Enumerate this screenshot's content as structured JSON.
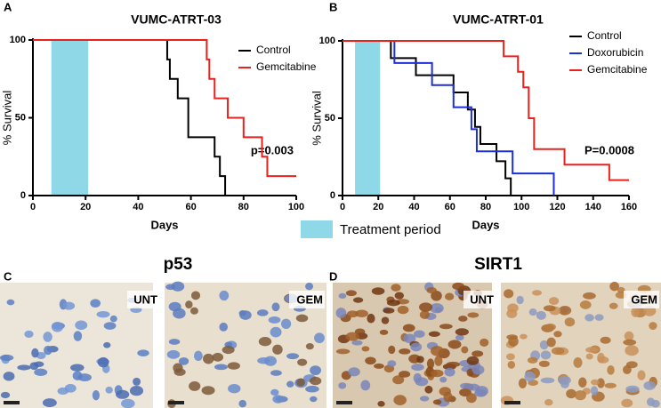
{
  "chart_data": [
    {
      "type": "step",
      "title": "VUMC-ATRT-03",
      "panel": "A",
      "xlabel": "Days",
      "ylabel": "% Survival",
      "xlim": [
        0,
        100
      ],
      "xticks": [
        0,
        20,
        40,
        60,
        80,
        100
      ],
      "ylim": [
        0,
        100
      ],
      "yticks": [
        0,
        50,
        100
      ],
      "shade": [
        7,
        21
      ],
      "annotation": "p=0.003",
      "series": [
        {
          "name": "Control",
          "color": "#000000",
          "x": [
            0,
            51,
            52,
            55,
            59,
            69,
            71,
            73
          ],
          "values": [
            100,
            87.5,
            75,
            62.5,
            37.5,
            25,
            12.5,
            0
          ]
        },
        {
          "name": "Gemcitabine",
          "color": "#e8221c",
          "x": [
            0,
            66,
            67,
            69,
            74,
            80,
            87,
            89,
            100
          ],
          "values": [
            100,
            87.5,
            75,
            62.5,
            50,
            37.5,
            25,
            12.5,
            12.5
          ]
        }
      ]
    },
    {
      "type": "step",
      "title": "VUMC-ATRT-01",
      "panel": "B",
      "xlabel": "Days",
      "ylabel": "% Survival",
      "xlim": [
        0,
        160
      ],
      "xticks": [
        0,
        20,
        40,
        60,
        80,
        100,
        120,
        140,
        160
      ],
      "ylim": [
        0,
        100
      ],
      "yticks": [
        0,
        50,
        100
      ],
      "shade": [
        7,
        21
      ],
      "annotation": "P=0.0008",
      "series": [
        {
          "name": "Control",
          "color": "#000000",
          "x": [
            0,
            27,
            41,
            62,
            70,
            74,
            77,
            86,
            91,
            94
          ],
          "values": [
            100,
            88.9,
            77.8,
            66.7,
            55.6,
            44.4,
            33.3,
            22.2,
            11.1,
            0
          ]
        },
        {
          "name": "Doxorubicin",
          "color": "#1c2fd8",
          "x": [
            0,
            29,
            50,
            62,
            72,
            75,
            95,
            118
          ],
          "values": [
            100,
            85.7,
            71.4,
            57.1,
            42.9,
            28.6,
            14.3,
            0
          ]
        },
        {
          "name": "Gemcitabine",
          "color": "#e8221c",
          "x": [
            0,
            90,
            98,
            101,
            104,
            107,
            124,
            149,
            160
          ],
          "values": [
            100,
            90,
            80,
            70,
            50,
            30,
            20,
            10,
            10
          ]
        }
      ]
    }
  ],
  "shade_legend": {
    "label": "Treatment period",
    "color": "#8fd8e8"
  },
  "images": [
    {
      "panel": "C",
      "title": "p53",
      "left": "UNT",
      "right": "GEM"
    },
    {
      "panel": "D",
      "title": "SIRT1",
      "left": "UNT",
      "right": "GEM"
    }
  ]
}
